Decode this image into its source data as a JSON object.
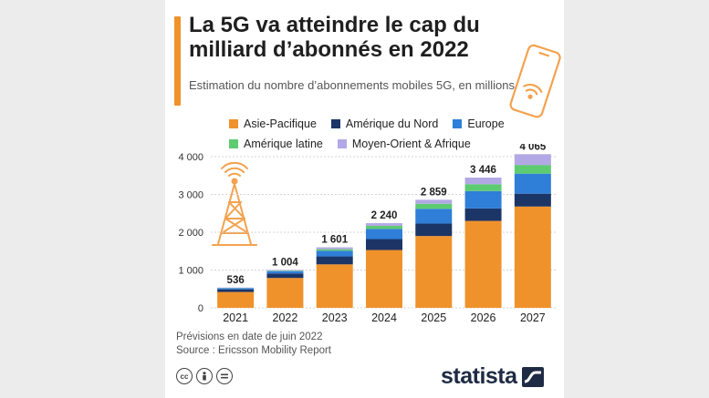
{
  "header": {
    "title": "La 5G va atteindre le cap du milliard d’abonnés en 2022",
    "subtitle": "Estimation du nombre d’abonnements mobiles 5G, en millions",
    "accent_color": "#f0922b"
  },
  "legend": {
    "rows": [
      [
        {
          "label": "Asie-Pacifique",
          "color": "#f0922b"
        },
        {
          "label": "Amérique du Nord",
          "color": "#1c3567"
        },
        {
          "label": "Europe",
          "color": "#2f7ed8"
        }
      ],
      [
        {
          "label": "Amérique latine",
          "color": "#5dcb72"
        },
        {
          "label": "Moyen-Orient & Afrique",
          "color": "#b3a8e6"
        }
      ]
    ]
  },
  "chart_data": {
    "type": "bar",
    "stacked": true,
    "categories": [
      "2021",
      "2022",
      "2023",
      "2024",
      "2025",
      "2026",
      "2027"
    ],
    "totals": [
      "536",
      "1 004",
      "1 601",
      "2 240",
      "2 859",
      "3 446",
      "4 065"
    ],
    "series": [
      {
        "name": "Asie-Pacifique",
        "color": "#f0922b",
        "values": [
          420,
          790,
          1150,
          1530,
          1900,
          2300,
          2680
        ]
      },
      {
        "name": "Amérique du Nord",
        "color": "#1c3567",
        "values": [
          70,
          120,
          210,
          290,
          330,
          330,
          340
        ]
      },
      {
        "name": "Europe",
        "color": "#2f7ed8",
        "values": [
          30,
          60,
          150,
          270,
          390,
          460,
          530
        ]
      },
      {
        "name": "Amérique latine",
        "color": "#5dcb72",
        "values": [
          6,
          14,
          41,
          80,
          134,
          181,
          230
        ]
      },
      {
        "name": "Moyen-Orient & Afrique",
        "color": "#b3a8e6",
        "values": [
          10,
          20,
          50,
          70,
          105,
          175,
          285
        ]
      }
    ],
    "yticks": [
      "0",
      "1 000",
      "2 000",
      "3 000",
      "4 000"
    ],
    "ylim": [
      0,
      4000
    ],
    "grid": true,
    "legend_position": "top"
  },
  "footer": {
    "note": "Prévisions en date de juin 2022",
    "source": "Source : Ericsson Mobility Report",
    "brand": "statista",
    "license_icons": [
      "cc",
      "by",
      "nd"
    ]
  }
}
